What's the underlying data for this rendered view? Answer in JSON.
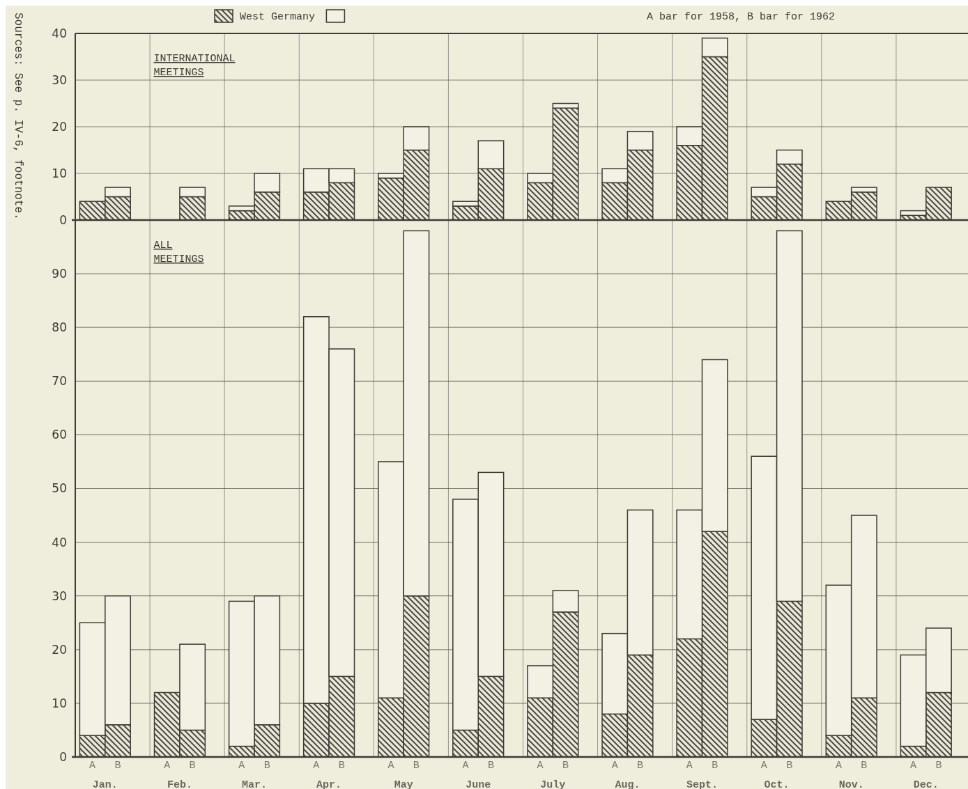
{
  "chart_data": [
    {
      "type": "bar",
      "title": "INTERNATIONAL MEETINGS",
      "stacked": true,
      "categories": [
        null,
        null,
        null,
        null,
        null,
        null,
        null,
        null,
        null,
        null,
        null,
        null,
        null,
        null,
        null,
        null,
        null,
        null,
        null,
        null,
        null,
        null,
        null,
        null
      ],
      "series": [
        {
          "name": "West Germany",
          "color": "#3d3b34",
          "values": [
            4,
            5,
            0,
            5,
            2,
            6,
            6,
            8,
            9,
            15,
            3,
            11,
            8,
            24,
            8,
            15,
            16,
            35,
            5,
            12,
            4,
            6,
            1,
            7
          ]
        },
        {
          "color": "#f2f1e4",
          "values": [
            0,
            2,
            0,
            2,
            1,
            4,
            5,
            3,
            1,
            5,
            1,
            6,
            2,
            1,
            3,
            4,
            4,
            4,
            2,
            3,
            0,
            1,
            1,
            0
          ]
        }
      ],
      "ylim": [
        0,
        40
      ],
      "yticks": [
        0,
        10,
        20,
        30,
        40
      ],
      "grid": true,
      "legend": "top",
      "tick_labels": "y",
      "annotations": [
        "A bar for 1958, B bar for 1962",
        "Sources: See p. IV-6, footnote."
      ]
    },
    {
      "type": "bar",
      "title": "ALL MEETINGS",
      "stacked": true,
      "categories": [
        "A",
        "B",
        "A",
        "B",
        "A",
        "B",
        "A",
        "B",
        "A",
        "B",
        "A",
        "B",
        "A",
        "B",
        "A",
        "B",
        "A",
        "B",
        "A",
        "B",
        "A",
        "B",
        "A",
        "B"
      ],
      "series": [
        {
          "color": "#3d3b34",
          "values": [
            4,
            6,
            12,
            5,
            2,
            6,
            10,
            15,
            11,
            30,
            5,
            15,
            11,
            27,
            8,
            19,
            22,
            42,
            7,
            29,
            4,
            11,
            2,
            12
          ]
        },
        {
          "color": "#f2f1e4",
          "values": [
            21,
            24,
            0,
            16,
            27,
            24,
            72,
            61,
            44,
            68,
            43,
            38,
            6,
            4,
            15,
            27,
            24,
            32,
            49,
            69,
            28,
            34,
            17,
            12
          ]
        }
      ],
      "ylim": [
        0,
        100
      ],
      "yticks": [
        0,
        10,
        20,
        30,
        40,
        50,
        60,
        70,
        80,
        90
      ],
      "grid": true,
      "annotations": [
        "Jan.",
        "Feb.",
        "Mar.",
        "Apr.",
        "May",
        "June",
        "July",
        "Aug.",
        "Sept.",
        "Oct.",
        "Nov.",
        "Dec."
      ]
    }
  ]
}
